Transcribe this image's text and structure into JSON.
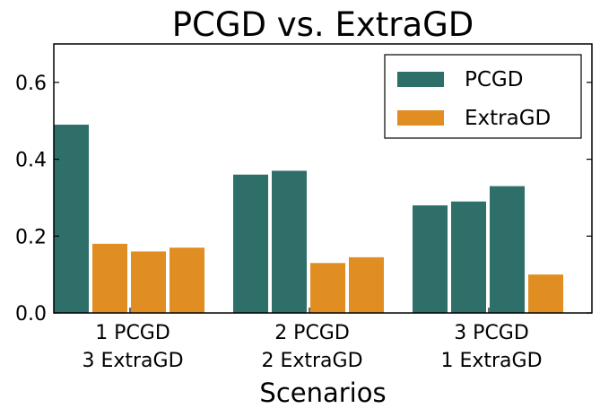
{
  "chart_data": {
    "type": "bar",
    "title": "PCGD vs. ExtraGD",
    "xlabel": "Scenarios",
    "ylabel": "",
    "ylim": [
      0,
      0.7
    ],
    "yticks": [
      "0.0",
      "0.2",
      "0.4",
      "0.6"
    ],
    "ytick_values": [
      0,
      0.2,
      0.4,
      0.6
    ],
    "groups": [
      {
        "label_line1": "1 PCGD",
        "label_line2": "3 ExtraGD",
        "bars": [
          {
            "series": "PCGD",
            "value": 0.49
          },
          {
            "series": "ExtraGD",
            "value": 0.18
          },
          {
            "series": "ExtraGD",
            "value": 0.16
          },
          {
            "series": "ExtraGD",
            "value": 0.17
          }
        ]
      },
      {
        "label_line1": "2 PCGD",
        "label_line2": "2 ExtraGD",
        "bars": [
          {
            "series": "PCGD",
            "value": 0.36
          },
          {
            "series": "PCGD",
            "value": 0.37
          },
          {
            "series": "ExtraGD",
            "value": 0.13
          },
          {
            "series": "ExtraGD",
            "value": 0.145
          }
        ]
      },
      {
        "label_line1": "3 PCGD",
        "label_line2": "1 ExtraGD",
        "bars": [
          {
            "series": "PCGD",
            "value": 0.28
          },
          {
            "series": "PCGD",
            "value": 0.29
          },
          {
            "series": "PCGD",
            "value": 0.33
          },
          {
            "series": "ExtraGD",
            "value": 0.1
          }
        ]
      }
    ],
    "legend": {
      "placement": "top-right",
      "entries": [
        {
          "name": "PCGD",
          "color": "#2e6f6a"
        },
        {
          "name": "ExtraGD",
          "color": "#e08e22"
        }
      ]
    }
  }
}
